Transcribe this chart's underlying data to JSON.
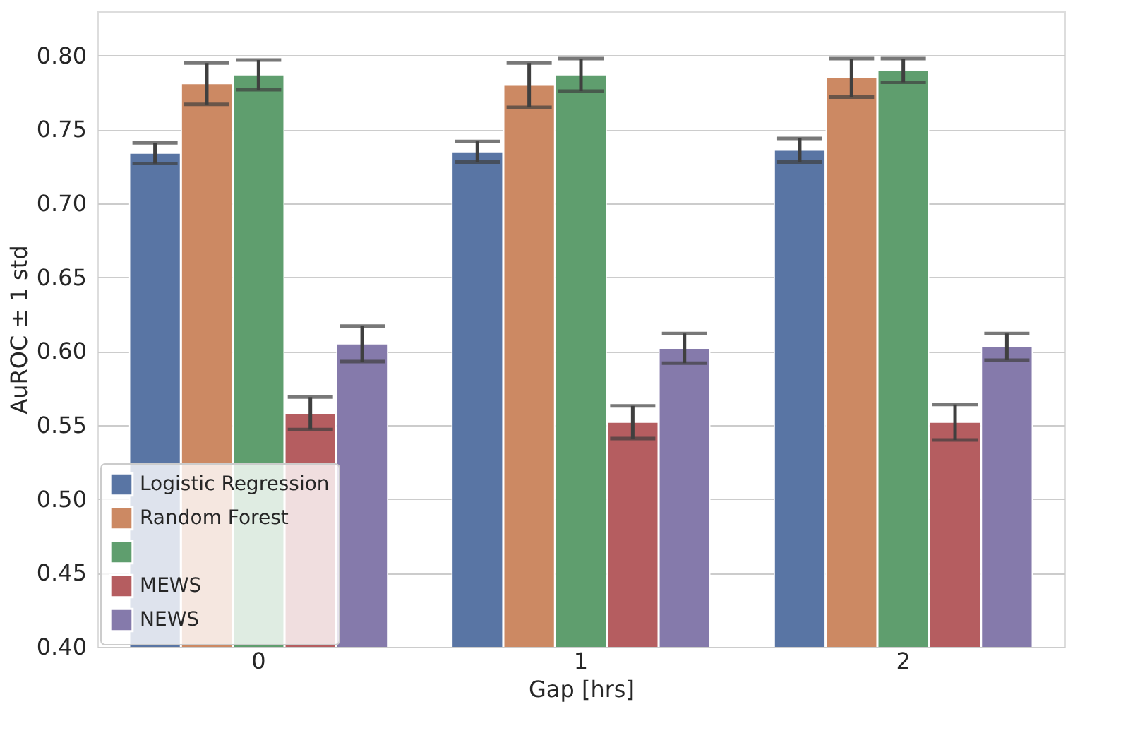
{
  "chart_data": {
    "type": "bar",
    "xlabel": "Gap [hrs]",
    "ylabel": "AuROC ± 1 std",
    "categories": [
      "0",
      "1",
      "2"
    ],
    "series": [
      {
        "name": "Logistic Regression",
        "color": "#5975a4",
        "values": [
          0.734,
          0.735,
          0.736
        ],
        "errors": [
          0.007,
          0.007,
          0.008
        ]
      },
      {
        "name": "Random Forest",
        "color": "#cc8963",
        "values": [
          0.781,
          0.78,
          0.785
        ],
        "errors": [
          0.014,
          0.015,
          0.013
        ]
      },
      {
        "color": "#5f9e6e",
        "values": [
          0.787,
          0.787,
          0.79
        ],
        "errors": [
          0.01,
          0.011,
          0.008
        ]
      },
      {
        "name": "MEWS",
        "color": "#b55d60",
        "values": [
          0.558,
          0.552,
          0.552
        ],
        "errors": [
          0.011,
          0.011,
          0.012
        ]
      },
      {
        "name": "NEWS",
        "color": "#857aab",
        "values": [
          0.605,
          0.602,
          0.603
        ],
        "errors": [
          0.012,
          0.01,
          0.009
        ]
      }
    ],
    "ylim": [
      0.4,
      0.83
    ],
    "yticks": [
      {
        "value": 0.4,
        "label": "0.40"
      },
      {
        "value": 0.45,
        "label": "0.45"
      },
      {
        "value": 0.5,
        "label": "0.50"
      },
      {
        "value": 0.55,
        "label": "0.55"
      },
      {
        "value": 0.6,
        "label": "0.60"
      },
      {
        "value": 0.65,
        "label": "0.65"
      },
      {
        "value": 0.7,
        "label": "0.70"
      },
      {
        "value": 0.75,
        "label": "0.75"
      },
      {
        "value": 0.8,
        "label": "0.80"
      }
    ],
    "grid": "y",
    "legend": "bottom left"
  }
}
